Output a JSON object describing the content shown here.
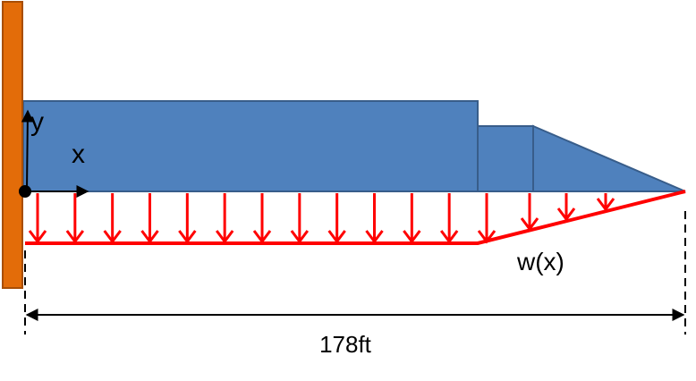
{
  "labels": {
    "y_axis": "y",
    "x_axis": "x",
    "load": "w(x)",
    "length": "178ft"
  },
  "colors": {
    "wall": "#e36c09",
    "wall_stroke": "#a84e05",
    "beam": "#4f81bd",
    "beam_stroke": "#385d8a",
    "load": "#ff0000",
    "ink": "#000000"
  },
  "load": {
    "arrow_count_uniform": 13,
    "arrow_count_tapered": 3
  }
}
